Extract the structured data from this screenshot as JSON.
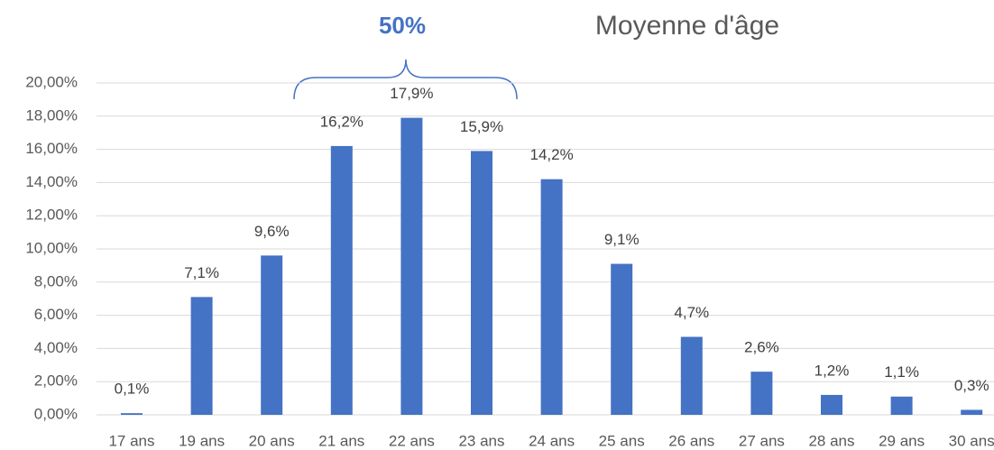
{
  "chart_data": {
    "type": "bar",
    "title": "Moyenne d'âge",
    "annotation": "50%",
    "categories": [
      "17 ans",
      "19 ans",
      "20 ans",
      "21 ans",
      "22 ans",
      "23 ans",
      "24 ans",
      "25 ans",
      "26 ans",
      "27 ans",
      "28 ans",
      "29 ans",
      "30 ans"
    ],
    "values": [
      0.1,
      7.1,
      9.6,
      16.2,
      17.9,
      15.9,
      14.2,
      9.1,
      4.7,
      2.6,
      1.2,
      1.1,
      0.3
    ],
    "value_labels": [
      "0,1%",
      "7,1%",
      "9,6%",
      "16,2%",
      "17,9%",
      "15,9%",
      "14,2%",
      "9,1%",
      "4,7%",
      "2,6%",
      "1,2%",
      "1,1%",
      "0,3%"
    ],
    "color": "#4472c4",
    "ylim": [
      0,
      20
    ],
    "yticks": [
      {
        "value": 0,
        "label": "0,00%"
      },
      {
        "value": 2,
        "label": "2,00%"
      },
      {
        "value": 4,
        "label": "4,00%"
      },
      {
        "value": 6,
        "label": "6,00%"
      },
      {
        "value": 8,
        "label": "8,00%"
      },
      {
        "value": 10,
        "label": "10,00%"
      },
      {
        "value": 12,
        "label": "12,00%"
      },
      {
        "value": 14,
        "label": "14,00%"
      },
      {
        "value": 16,
        "label": "16,00%"
      },
      {
        "value": 18,
        "label": "18,00%"
      },
      {
        "value": 20,
        "label": "20,00%"
      }
    ],
    "grid": true
  }
}
